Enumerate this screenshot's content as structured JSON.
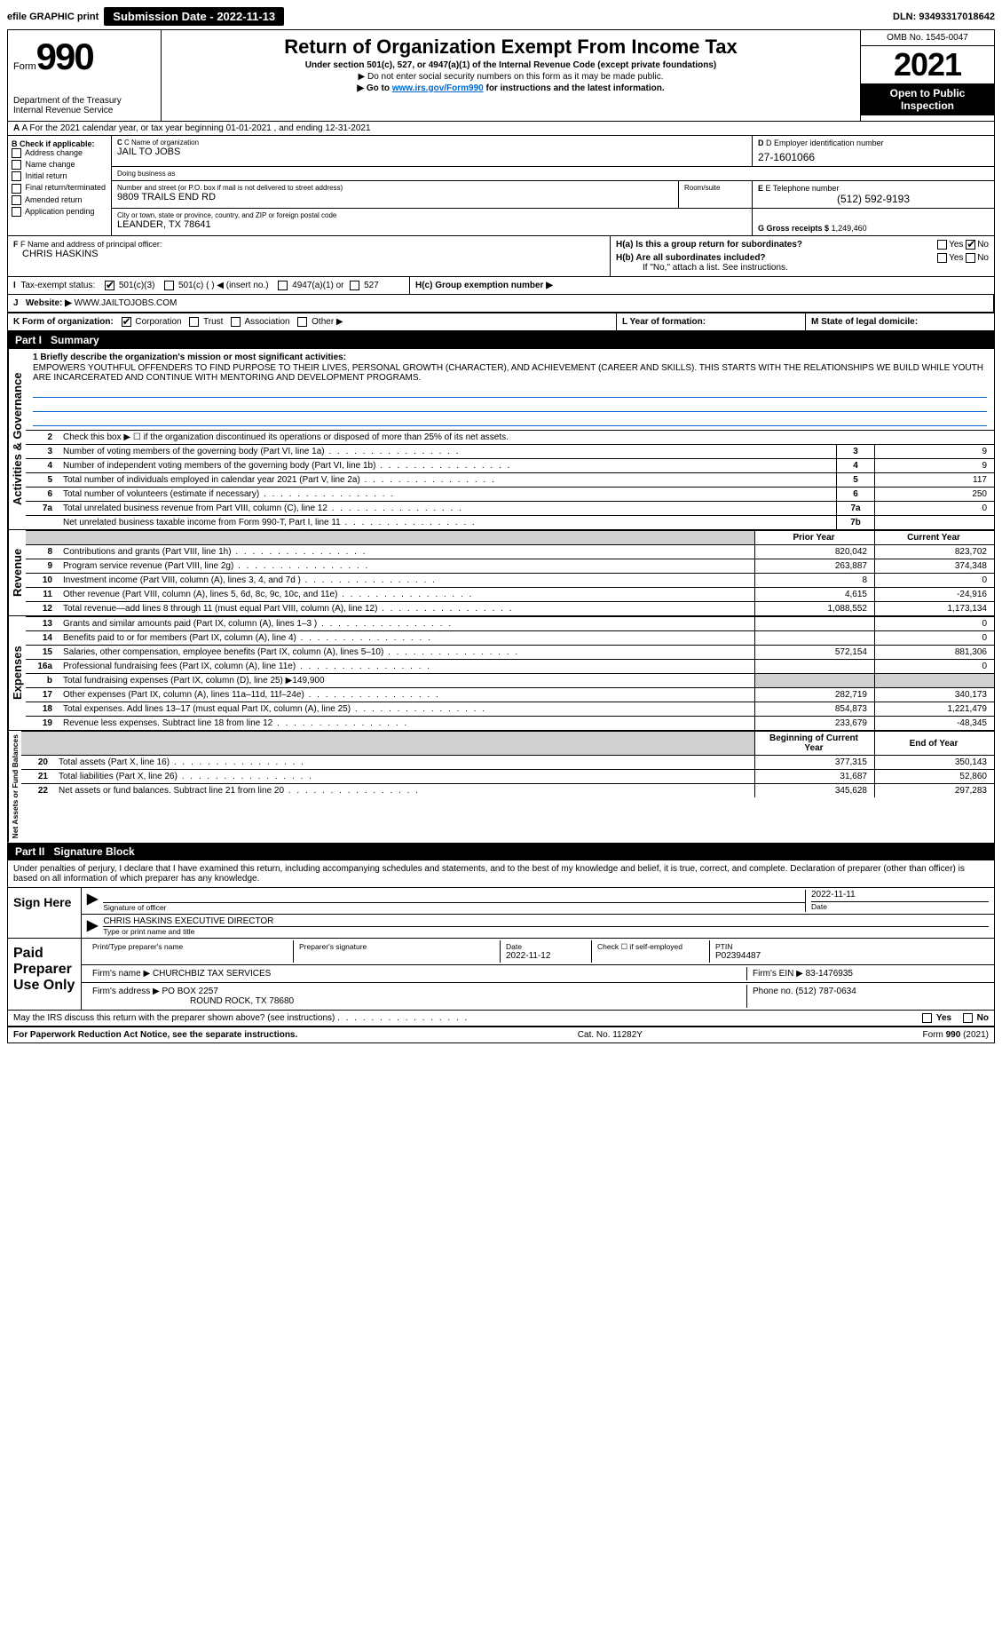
{
  "topbar": {
    "efile": "efile GRAPHIC print",
    "submission_label": "Submission Date - 2022-11-13",
    "dln": "DLN: 93493317018642"
  },
  "header": {
    "form_prefix": "Form",
    "form_number": "990",
    "dept": "Department of the Treasury",
    "irs": "Internal Revenue Service",
    "title": "Return of Organization Exempt From Income Tax",
    "sub1": "Under section 501(c), 527, or 4947(a)(1) of the Internal Revenue Code (except private foundations)",
    "sub2": "▶ Do not enter social security numbers on this form as it may be made public.",
    "sub3_pre": "▶ Go to ",
    "sub3_link": "www.irs.gov/Form990",
    "sub3_post": " for instructions and the latest information.",
    "omb": "OMB No. 1545-0047",
    "year": "2021",
    "inspect": "Open to Public Inspection"
  },
  "row_a": "A For the 2021 calendar year, or tax year beginning 01-01-2021   , and ending 12-31-2021",
  "col_b": {
    "hdr": "B Check if applicable:",
    "items": [
      "Address change",
      "Name change",
      "Initial return",
      "Final return/terminated",
      "Amended return",
      "Application pending"
    ]
  },
  "c": {
    "name_lbl": "C Name of organization",
    "name": "JAIL TO JOBS",
    "dba_lbl": "Doing business as",
    "dba": "",
    "addr_lbl": "Number and street (or P.O. box if mail is not delivered to street address)",
    "room_lbl": "Room/suite",
    "addr": "9809 TRAILS END RD",
    "city_lbl": "City or town, state or province, country, and ZIP or foreign postal code",
    "city": "LEANDER, TX  78641"
  },
  "d": {
    "lbl": "D Employer identification number",
    "val": "27-1601066"
  },
  "e": {
    "lbl": "E Telephone number",
    "val": "(512) 592-9193"
  },
  "g": {
    "lbl": "G Gross receipts $",
    "val": "1,249,460"
  },
  "f": {
    "lbl": "F Name and address of principal officer:",
    "val": "CHRIS HASKINS"
  },
  "h": {
    "a": "H(a)  Is this a group return for subordinates?",
    "b": "H(b)  Are all subordinates included?",
    "b2": "If \"No,\" attach a list. See instructions.",
    "c": "H(c)  Group exemption number ▶",
    "yes": "Yes",
    "no": "No"
  },
  "i": {
    "lbl": "I   Tax-exempt status:",
    "o1": "501(c)(3)",
    "o2": "501(c) (  ) ◀ (insert no.)",
    "o3": "4947(a)(1) or",
    "o4": "527"
  },
  "j": {
    "lbl": "J   Website: ▶",
    "val": "WWW.JAILTOJOBS.COM"
  },
  "k": {
    "lbl": "K Form of organization:",
    "o1": "Corporation",
    "o2": "Trust",
    "o3": "Association",
    "o4": "Other ▶"
  },
  "l": "L Year of formation:",
  "m": "M State of legal domicile:",
  "part1": {
    "num": "Part I",
    "title": "Summary"
  },
  "vert": {
    "ag": "Activities & Governance",
    "rev": "Revenue",
    "exp": "Expenses",
    "net": "Net Assets or Fund Balances"
  },
  "mission": {
    "lbl": "1  Briefly describe the organization's mission or most significant activities:",
    "txt": "EMPOWERS YOUTHFUL OFFENDERS TO FIND PURPOSE TO THEIR LIVES, PERSONAL GROWTH (CHARACTER), AND ACHIEVEMENT (CAREER AND SKILLS). THIS STARTS WITH THE RELATIONSHIPS WE BUILD WHILE YOUTH ARE INCARCERATED AND CONTINUE WITH MENTORING AND DEVELOPMENT PROGRAMS."
  },
  "gov_rows": [
    {
      "n": "2",
      "t": "Check this box ▶ ☐ if the organization discontinued its operations or disposed of more than 25% of its net assets."
    },
    {
      "n": "3",
      "t": "Number of voting members of the governing body (Part VI, line 1a)",
      "box": "3",
      "v": "9"
    },
    {
      "n": "4",
      "t": "Number of independent voting members of the governing body (Part VI, line 1b)",
      "box": "4",
      "v": "9"
    },
    {
      "n": "5",
      "t": "Total number of individuals employed in calendar year 2021 (Part V, line 2a)",
      "box": "5",
      "v": "117"
    },
    {
      "n": "6",
      "t": "Total number of volunteers (estimate if necessary)",
      "box": "6",
      "v": "250"
    },
    {
      "n": "7a",
      "t": "Total unrelated business revenue from Part VIII, column (C), line 12",
      "box": "7a",
      "v": "0"
    },
    {
      "n": "",
      "t": "Net unrelated business taxable income from Form 990-T, Part I, line 11",
      "box": "7b",
      "v": ""
    }
  ],
  "yr_hdr": {
    "py": "Prior Year",
    "cy": "Current Year"
  },
  "rev_rows": [
    {
      "n": "8",
      "t": "Contributions and grants (Part VIII, line 1h)",
      "py": "820,042",
      "cy": "823,702"
    },
    {
      "n": "9",
      "t": "Program service revenue (Part VIII, line 2g)",
      "py": "263,887",
      "cy": "374,348"
    },
    {
      "n": "10",
      "t": "Investment income (Part VIII, column (A), lines 3, 4, and 7d )",
      "py": "8",
      "cy": "0"
    },
    {
      "n": "11",
      "t": "Other revenue (Part VIII, column (A), lines 5, 6d, 8c, 9c, 10c, and 11e)",
      "py": "4,615",
      "cy": "-24,916"
    },
    {
      "n": "12",
      "t": "Total revenue—add lines 8 through 11 (must equal Part VIII, column (A), line 12)",
      "py": "1,088,552",
      "cy": "1,173,134"
    }
  ],
  "exp_rows": [
    {
      "n": "13",
      "t": "Grants and similar amounts paid (Part IX, column (A), lines 1–3 )",
      "py": "",
      "cy": "0"
    },
    {
      "n": "14",
      "t": "Benefits paid to or for members (Part IX, column (A), line 4)",
      "py": "",
      "cy": "0"
    },
    {
      "n": "15",
      "t": "Salaries, other compensation, employee benefits (Part IX, column (A), lines 5–10)",
      "py": "572,154",
      "cy": "881,306"
    },
    {
      "n": "16a",
      "t": "Professional fundraising fees (Part IX, column (A), line 11e)",
      "py": "",
      "cy": "0"
    },
    {
      "n": "b",
      "t": "Total fundraising expenses (Part IX, column (D), line 25) ▶149,900",
      "shade": true
    },
    {
      "n": "17",
      "t": "Other expenses (Part IX, column (A), lines 11a–11d, 11f–24e)",
      "py": "282,719",
      "cy": "340,173"
    },
    {
      "n": "18",
      "t": "Total expenses. Add lines 13–17 (must equal Part IX, column (A), line 25)",
      "py": "854,873",
      "cy": "1,221,479"
    },
    {
      "n": "19",
      "t": "Revenue less expenses. Subtract line 18 from line 12",
      "py": "233,679",
      "cy": "-48,345"
    }
  ],
  "net_hdr": {
    "b": "Beginning of Current Year",
    "e": "End of Year"
  },
  "net_rows": [
    {
      "n": "20",
      "t": "Total assets (Part X, line 16)",
      "py": "377,315",
      "cy": "350,143"
    },
    {
      "n": "21",
      "t": "Total liabilities (Part X, line 26)",
      "py": "31,687",
      "cy": "52,860"
    },
    {
      "n": "22",
      "t": "Net assets or fund balances. Subtract line 21 from line 20",
      "py": "345,628",
      "cy": "297,283"
    }
  ],
  "part2": {
    "num": "Part II",
    "title": "Signature Block"
  },
  "sig": {
    "decl": "Under penalties of perjury, I declare that I have examined this return, including accompanying schedules and statements, and to the best of my knowledge and belief, it is true, correct, and complete. Declaration of preparer (other than officer) is based on all information of which preparer has any knowledge.",
    "sign_here": "Sign Here",
    "sig_officer": "Signature of officer",
    "date": "Date",
    "date_val": "2022-11-11",
    "name_title": "CHRIS HASKINS  EXECUTIVE DIRECTOR",
    "type_lbl": "Type or print name and title",
    "paid": "Paid Preparer Use Only",
    "prep_name_lbl": "Print/Type preparer's name",
    "prep_sig_lbl": "Preparer's signature",
    "prep_date_lbl": "Date",
    "prep_date": "2022-11-12",
    "check_self": "Check ☐ if self-employed",
    "ptin_lbl": "PTIN",
    "ptin": "P02394487",
    "firm_name_lbl": "Firm's name    ▶",
    "firm_name": "CHURCHBIZ TAX SERVICES",
    "firm_ein_lbl": "Firm's EIN ▶",
    "firm_ein": "83-1476935",
    "firm_addr_lbl": "Firm's address ▶",
    "firm_addr1": "PO BOX 2257",
    "firm_addr2": "ROUND ROCK, TX  78680",
    "phone_lbl": "Phone no.",
    "phone": "(512) 787-0634",
    "discuss": "May the IRS discuss this return with the preparer shown above? (see instructions)"
  },
  "footer": {
    "left": "For Paperwork Reduction Act Notice, see the separate instructions.",
    "mid": "Cat. No. 11282Y",
    "right": "Form 990 (2021)"
  }
}
